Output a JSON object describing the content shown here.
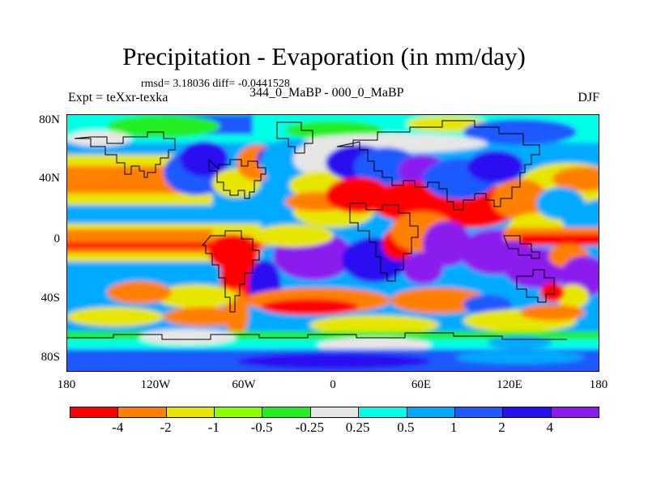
{
  "title": "Precipitation - Evaporation (in mm/day)",
  "stats": "rmsd= 3.18036  diff= -0.0441528",
  "experiment": "Expt = teXxr-texka",
  "periods": "344_0_MaBP - 000_0_MaBP",
  "season": "DJF",
  "map": {
    "lat_labels": [
      "80N",
      "40N",
      "0",
      "40S",
      "80S"
    ],
    "lon_labels": [
      "180",
      "120W",
      "60W",
      "0",
      "60E",
      "120E",
      "180"
    ]
  },
  "colorbar": {
    "labels": [
      "-4",
      "-2",
      "-1",
      "-0.5",
      "-0.25",
      "0.25",
      "0.5",
      "1",
      "2",
      "4"
    ],
    "colors": [
      "#ff0000",
      "#ff8000",
      "#e6e600",
      "#8cff00",
      "#22ee22",
      "#e6e6e6",
      "#00ffe6",
      "#00aaff",
      "#1e5aff",
      "#2a10f0",
      "#8c1aee"
    ]
  }
}
